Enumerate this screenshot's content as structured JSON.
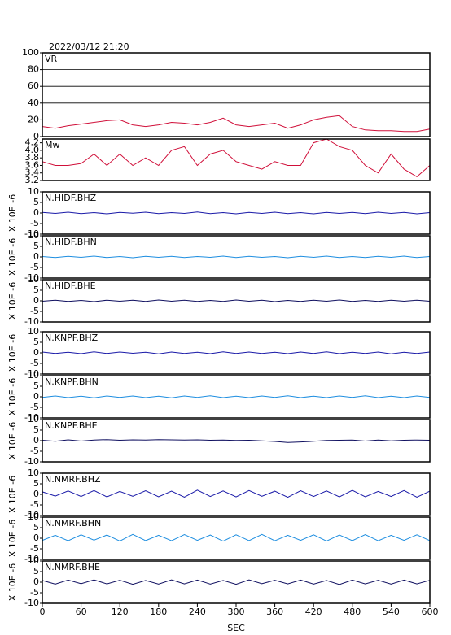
{
  "chart_data": [
    {
      "type": "line",
      "title": "2022/03/12 21:20",
      "label": "VR",
      "color": "#d0103a",
      "xlim": [
        0,
        600
      ],
      "ylim": [
        0,
        100
      ],
      "yticks": [
        0,
        20,
        40,
        60,
        80,
        100
      ],
      "grid": true,
      "x": [
        0,
        20,
        40,
        60,
        80,
        100,
        120,
        140,
        160,
        180,
        200,
        220,
        240,
        260,
        280,
        300,
        320,
        340,
        360,
        380,
        400,
        420,
        440,
        460,
        480,
        500,
        520,
        540,
        560,
        580,
        600
      ],
      "values": [
        12,
        10,
        13,
        15,
        17,
        19,
        20,
        14,
        12,
        14,
        17,
        16,
        14,
        17,
        22,
        14,
        12,
        14,
        16,
        10,
        14,
        20,
        23,
        25,
        12,
        8,
        7,
        7,
        6,
        6,
        9
      ]
    },
    {
      "type": "line",
      "label": "Mw",
      "color": "#d0103a",
      "xlim": [
        0,
        600
      ],
      "ylim": [
        3.2,
        4.3
      ],
      "yticks": [
        3.2,
        3.4,
        3.6,
        3.8,
        {
          "value": 4,
          "label": "4.0"
        },
        4.2
      ],
      "grid": false,
      "x": [
        0,
        20,
        40,
        60,
        80,
        100,
        120,
        140,
        160,
        180,
        200,
        220,
        240,
        260,
        280,
        300,
        320,
        340,
        360,
        380,
        400,
        420,
        440,
        460,
        480,
        500,
        520,
        540,
        560,
        580,
        600
      ],
      "values": [
        3.7,
        3.6,
        3.6,
        3.65,
        3.9,
        3.6,
        3.9,
        3.6,
        3.8,
        3.6,
        4.0,
        4.1,
        3.6,
        3.9,
        4.0,
        3.7,
        3.6,
        3.5,
        3.7,
        3.6,
        3.6,
        4.2,
        4.3,
        4.1,
        4.0,
        3.6,
        3.4,
        3.9,
        3.5,
        3.3,
        3.6
      ]
    },
    {
      "type": "line",
      "label": "N.HIDF.BHZ",
      "ylabel": "X 10E -6",
      "color": "#1a1aa8",
      "xlim": [
        0,
        600
      ],
      "ylim": [
        -10,
        10
      ],
      "yticks": [
        -10,
        -5,
        0,
        5,
        10
      ],
      "x": [
        0,
        20,
        40,
        60,
        80,
        100,
        120,
        140,
        160,
        180,
        200,
        220,
        240,
        260,
        280,
        300,
        320,
        340,
        360,
        380,
        400,
        420,
        440,
        460,
        480,
        500,
        520,
        540,
        560,
        580,
        600
      ],
      "values": [
        0.3,
        -0.2,
        0.4,
        -0.3,
        0.2,
        -0.4,
        0.3,
        -0.1,
        0.4,
        -0.3,
        0.2,
        -0.2,
        0.5,
        -0.3,
        0.2,
        -0.4,
        0.3,
        -0.2,
        0.4,
        -0.3,
        0.2,
        -0.4,
        0.3,
        -0.2,
        0.3,
        -0.3,
        0.4,
        -0.2,
        0.3,
        -0.4,
        0.2
      ]
    },
    {
      "type": "line",
      "label": "N.HIDF.BHN",
      "ylabel": "X 10E -6",
      "color": "#1e8ee0",
      "xlim": [
        0,
        600
      ],
      "ylim": [
        -10,
        10
      ],
      "yticks": [
        -10,
        -5,
        0,
        5,
        10
      ],
      "x": [
        0,
        20,
        40,
        60,
        80,
        100,
        120,
        140,
        160,
        180,
        200,
        220,
        240,
        260,
        280,
        300,
        320,
        340,
        360,
        380,
        400,
        420,
        440,
        460,
        480,
        500,
        520,
        540,
        560,
        580,
        600
      ],
      "values": [
        0.2,
        -0.3,
        0.3,
        -0.2,
        0.4,
        -0.3,
        0.2,
        -0.4,
        0.3,
        -0.2,
        0.3,
        -0.3,
        0.2,
        -0.2,
        0.4,
        -0.3,
        0.3,
        -0.2,
        0.2,
        -0.4,
        0.3,
        -0.2,
        0.4,
        -0.3,
        0.2,
        -0.3,
        0.3,
        -0.2,
        0.4,
        -0.3,
        0.2
      ]
    },
    {
      "type": "line",
      "label": "N.HIDF.BHE",
      "ylabel": "X 10E -6",
      "color": "#101060",
      "xlim": [
        0,
        600
      ],
      "ylim": [
        -10,
        10
      ],
      "yticks": [
        -10,
        -5,
        0,
        5,
        10
      ],
      "x": [
        0,
        20,
        40,
        60,
        80,
        100,
        120,
        140,
        160,
        180,
        200,
        220,
        240,
        260,
        280,
        300,
        320,
        340,
        360,
        380,
        400,
        420,
        440,
        460,
        480,
        500,
        520,
        540,
        560,
        580,
        600
      ],
      "values": [
        -0.2,
        0.3,
        -0.3,
        0.2,
        -0.4,
        0.3,
        -0.2,
        0.3,
        -0.3,
        0.4,
        -0.2,
        0.3,
        -0.3,
        0.2,
        -0.3,
        0.4,
        -0.2,
        0.3,
        -0.4,
        0.2,
        -0.3,
        0.3,
        -0.2,
        0.4,
        -0.3,
        0.2,
        -0.3,
        0.3,
        -0.2,
        0.3,
        -0.2
      ]
    },
    {
      "type": "line",
      "label": "N.KNPF.BHZ",
      "ylabel": "X 10E -6",
      "color": "#1a1aa8",
      "xlim": [
        0,
        600
      ],
      "ylim": [
        -10,
        10
      ],
      "yticks": [
        -10,
        -5,
        0,
        5,
        10
      ],
      "x": [
        0,
        20,
        40,
        60,
        80,
        100,
        120,
        140,
        160,
        180,
        200,
        220,
        240,
        260,
        280,
        300,
        320,
        340,
        360,
        380,
        400,
        420,
        440,
        460,
        480,
        500,
        520,
        540,
        560,
        580,
        600
      ],
      "values": [
        0.4,
        -0.3,
        0.3,
        -0.4,
        0.5,
        -0.3,
        0.4,
        -0.2,
        0.3,
        -0.5,
        0.4,
        -0.3,
        0.3,
        -0.4,
        0.5,
        -0.3,
        0.4,
        -0.3,
        0.3,
        -0.4,
        0.4,
        -0.3,
        0.5,
        -0.4,
        0.3,
        -0.3,
        0.4,
        -0.5,
        0.3,
        -0.3,
        0.4
      ]
    },
    {
      "type": "line",
      "label": "N.KNPF.BHN",
      "ylabel": "X 10E -6",
      "color": "#1e8ee0",
      "xlim": [
        0,
        600
      ],
      "ylim": [
        -10,
        10
      ],
      "yticks": [
        -10,
        -5,
        0,
        5,
        10
      ],
      "x": [
        0,
        20,
        40,
        60,
        80,
        100,
        120,
        140,
        160,
        180,
        200,
        220,
        240,
        260,
        280,
        300,
        320,
        340,
        360,
        380,
        400,
        420,
        440,
        460,
        480,
        500,
        520,
        540,
        560,
        580,
        600
      ],
      "values": [
        -0.3,
        0.4,
        -0.4,
        0.3,
        -0.5,
        0.4,
        -0.3,
        0.4,
        -0.4,
        0.3,
        -0.5,
        0.4,
        -0.3,
        0.5,
        -0.4,
        0.3,
        -0.4,
        0.4,
        -0.3,
        0.5,
        -0.4,
        0.3,
        -0.4,
        0.4,
        -0.3,
        0.5,
        -0.4,
        0.3,
        -0.4,
        0.4,
        -0.3
      ]
    },
    {
      "type": "line",
      "label": "N.KNPF.BHE",
      "ylabel": "X 10E -6",
      "color": "#101060",
      "xlim": [
        0,
        600
      ],
      "ylim": [
        -10,
        10
      ],
      "yticks": [
        -10,
        -5,
        0,
        5,
        10
      ],
      "x": [
        0,
        20,
        40,
        60,
        80,
        100,
        120,
        140,
        160,
        180,
        200,
        220,
        240,
        260,
        280,
        300,
        320,
        340,
        360,
        380,
        400,
        420,
        440,
        460,
        480,
        500,
        520,
        540,
        560,
        580,
        600
      ],
      "values": [
        0.2,
        -0.3,
        0.4,
        -0.2,
        0.3,
        0.5,
        0.2,
        0.4,
        0.3,
        0.5,
        0.4,
        0.3,
        0.4,
        0.2,
        0.3,
        0.1,
        0.2,
        -0.1,
        -0.4,
        -0.9,
        -0.6,
        -0.3,
        0.1,
        0.2,
        0.3,
        -0.2,
        0.3,
        -0.1,
        0.2,
        0.3,
        0.2
      ]
    },
    {
      "type": "line",
      "label": "N.NMRF.BHZ",
      "ylabel": "X 10E -6",
      "color": "#1a1aa8",
      "xlim": [
        0,
        600
      ],
      "ylim": [
        -10,
        10
      ],
      "yticks": [
        -10,
        -5,
        0,
        5,
        10
      ],
      "x": [
        0,
        20,
        40,
        60,
        80,
        100,
        120,
        140,
        160,
        180,
        200,
        220,
        240,
        260,
        280,
        300,
        320,
        340,
        360,
        380,
        400,
        420,
        440,
        460,
        480,
        500,
        520,
        540,
        560,
        580,
        600
      ],
      "values": [
        1.2,
        -0.8,
        1.6,
        -1.0,
        1.8,
        -1.2,
        1.4,
        -0.9,
        1.7,
        -1.1,
        1.5,
        -1.3,
        2.0,
        -1.0,
        1.6,
        -1.2,
        1.8,
        -0.9,
        1.5,
        -1.4,
        1.7,
        -1.0,
        1.6,
        -1.2,
        1.9,
        -1.1,
        1.4,
        -1.0,
        1.8,
        -1.3,
        1.5
      ]
    },
    {
      "type": "line",
      "label": "N.NMRF.BHN",
      "ylabel": "X 10E -6",
      "color": "#1e8ee0",
      "xlim": [
        0,
        600
      ],
      "ylim": [
        -10,
        10
      ],
      "yticks": [
        -10,
        -5,
        0,
        5,
        10
      ],
      "x": [
        0,
        20,
        40,
        60,
        80,
        100,
        120,
        140,
        160,
        180,
        200,
        220,
        240,
        260,
        280,
        300,
        320,
        340,
        360,
        380,
        400,
        420,
        440,
        460,
        480,
        500,
        520,
        540,
        560,
        580,
        600
      ],
      "values": [
        -1.0,
        1.4,
        -1.2,
        1.6,
        -0.9,
        1.5,
        -1.3,
        1.8,
        -1.1,
        1.4,
        -1.2,
        1.7,
        -1.0,
        1.5,
        -1.4,
        1.6,
        -1.1,
        1.8,
        -1.2,
        1.4,
        -1.0,
        1.6,
        -1.3,
        1.5,
        -1.1,
        1.7,
        -1.2,
        1.4,
        -1.0,
        1.6,
        -1.1
      ]
    },
    {
      "type": "line",
      "label": "N.NMRF.BHE",
      "ylabel": "X 10E -6",
      "color": "#101060",
      "xlim": [
        0,
        600
      ],
      "ylim": [
        -10,
        10
      ],
      "yticks": [
        -10,
        -5,
        0,
        5,
        10
      ],
      "xlabel": "SEC",
      "xticks": [
        0,
        60,
        120,
        180,
        240,
        300,
        360,
        420,
        480,
        540,
        600
      ],
      "x": [
        0,
        20,
        40,
        60,
        80,
        100,
        120,
        140,
        160,
        180,
        200,
        220,
        240,
        260,
        280,
        300,
        320,
        340,
        360,
        380,
        400,
        420,
        440,
        460,
        480,
        500,
        520,
        540,
        560,
        580,
        600
      ],
      "values": [
        0.8,
        -0.9,
        1.0,
        -0.7,
        1.1,
        -0.8,
        0.9,
        -1.0,
        0.8,
        -0.9,
        1.1,
        -0.8,
        1.0,
        -0.9,
        0.8,
        -1.0,
        1.1,
        -0.7,
        0.9,
        -0.8,
        1.0,
        -0.9,
        0.8,
        -1.1,
        1.0,
        -0.8,
        0.9,
        -0.9,
        1.0,
        -0.8,
        0.9
      ]
    }
  ]
}
